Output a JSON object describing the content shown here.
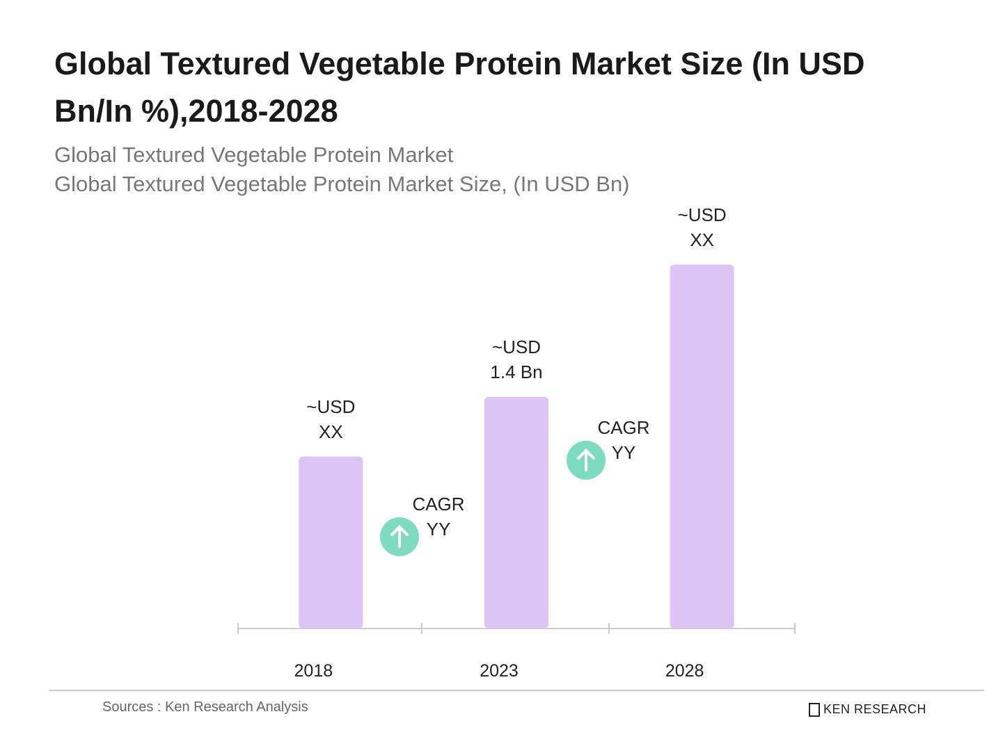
{
  "chart_data": {
    "type": "bar",
    "title": "Global Textured Vegetable Protein Market Size (In USD Bn/In %),2018-2028",
    "subtitle": "Global Textured Vegetable Protein Market",
    "measure": "Global Textured Vegetable Protein Market Size, (In USD Bn)",
    "categories": [
      "2018",
      "2023",
      "2028"
    ],
    "values": [
      1.04,
      1.4,
      2.2
    ],
    "value_labels": [
      "~USD XX",
      "~USD 1.4 Bn",
      "~USD XX"
    ],
    "color": "#dcc4f5",
    "ylim": [
      0,
      2.4
    ],
    "annotations": [
      "CAGR YY",
      "CAGR YY"
    ],
    "source": "Sources : Ken Research Analysis",
    "brand": "KEN RESEARCH"
  }
}
